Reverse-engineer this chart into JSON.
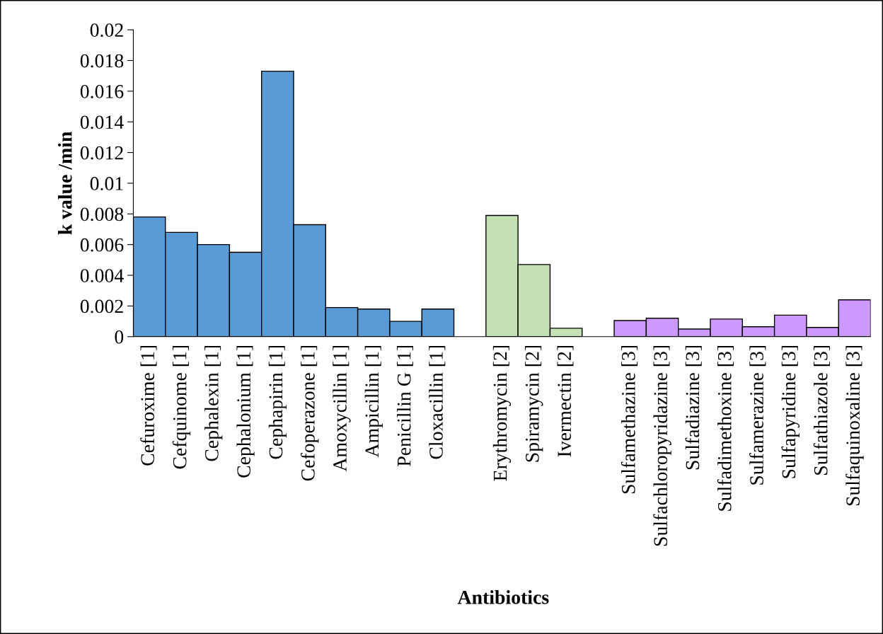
{
  "chart_data": {
    "type": "bar",
    "xlabel": "Antibiotics",
    "ylabel": "k value /min",
    "categories": [
      "Cefuroxime [1]",
      "Cefquinome [1]",
      "Cephalexin [1]",
      "Cephalonium [1]",
      "Cephapirin [1]",
      "Cefoperazone [1]",
      "Amoxycillin [1]",
      "Ampicillin [1]",
      "Penicillin G [1]",
      "Cloxacillin [1]",
      null,
      "Erythromycin [2]",
      "Spiramycin [2]",
      "Ivermectin [2]",
      null,
      "Sulfamethazine [3]",
      "Sulfachloropyridazine [3]",
      "Sulfadiazine [3]",
      "Sulfadimethoxine [3]",
      "Sulfamerazine [3]",
      "Sulfapyridine [3]",
      "Sulfathiazole [3]",
      "Sulfaquinoxaline [3]"
    ],
    "values": [
      0.0078,
      0.0068,
      0.006,
      0.0055,
      0.0173,
      0.0073,
      0.0019,
      0.0018,
      0.001,
      0.0018,
      null,
      0.0079,
      0.0047,
      0.00055,
      null,
      0.00105,
      0.0012,
      0.0005,
      0.00115,
      0.00065,
      0.0014,
      0.0006,
      0.0024
    ],
    "colors": [
      "#5b9bd5",
      "#5b9bd5",
      "#5b9bd5",
      "#5b9bd5",
      "#5b9bd5",
      "#5b9bd5",
      "#5b9bd5",
      "#5b9bd5",
      "#5b9bd5",
      "#5b9bd5",
      null,
      "#c5e0b4",
      "#c5e0b4",
      "#c5e0b4",
      null,
      "#cc99ff",
      "#cc99ff",
      "#cc99ff",
      "#cc99ff",
      "#cc99ff",
      "#cc99ff",
      "#cc99ff",
      "#cc99ff"
    ],
    "ylim": [
      0,
      0.02
    ],
    "yticks": [
      0,
      0.002,
      0.004,
      0.006,
      0.008,
      {
        "value": 0.01,
        "label": "0.01"
      },
      0.012,
      0.014,
      0.016,
      0.018,
      {
        "value": 0.02,
        "label": "0.02"
      }
    ],
    "grid": false,
    "legend": false
  }
}
